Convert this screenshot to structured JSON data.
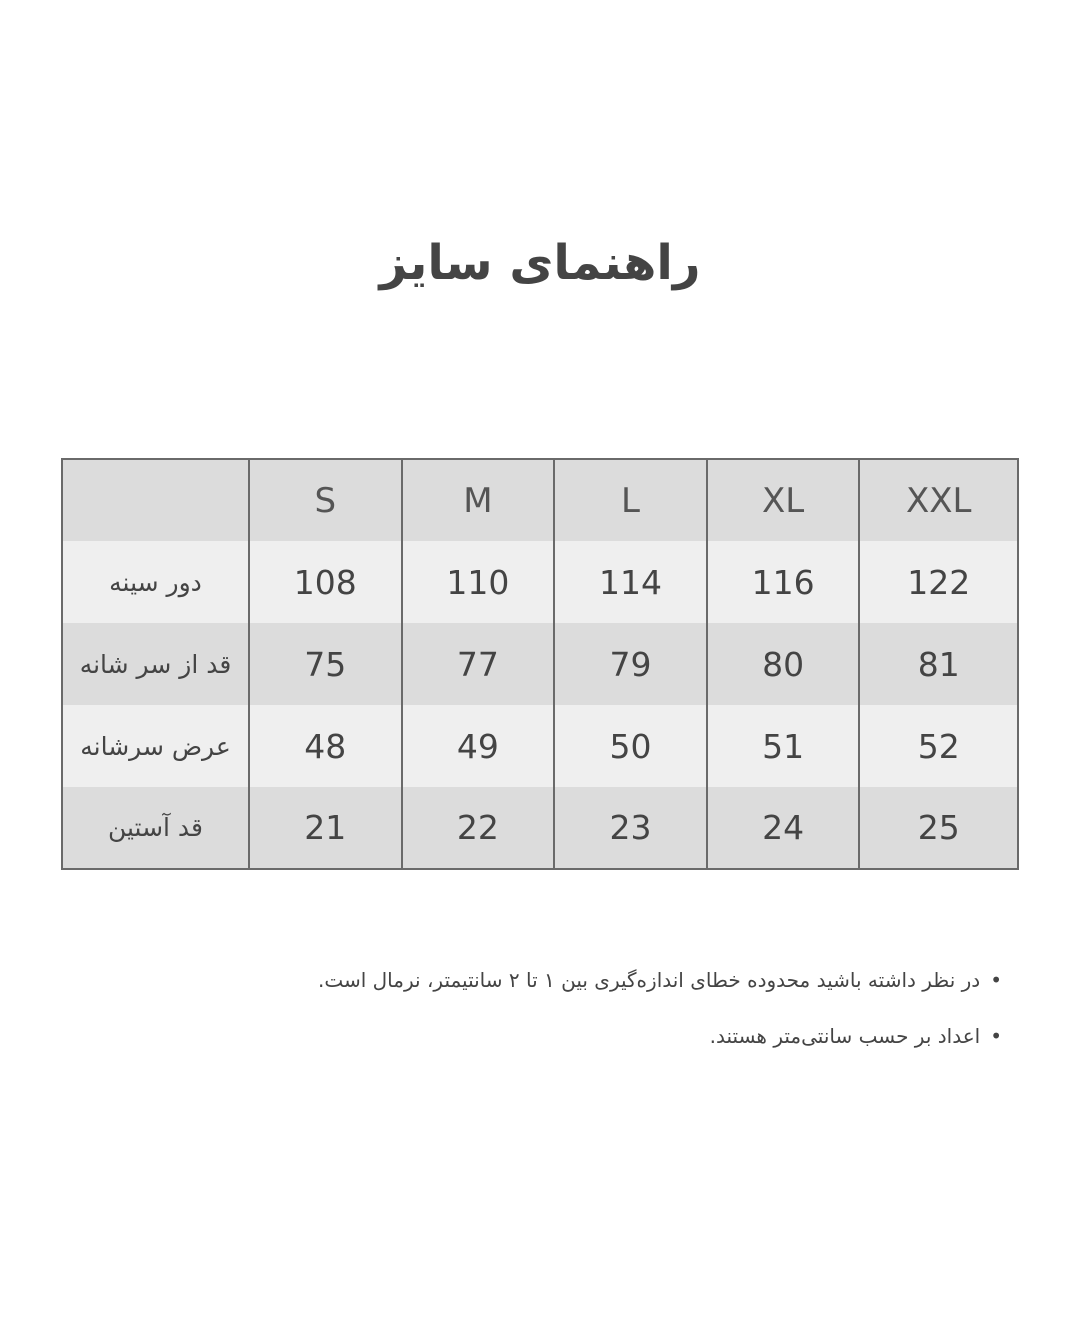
{
  "title": "راهنمای سایز",
  "table": {
    "sizes": [
      "S",
      "M",
      "L",
      "XL",
      "XXL"
    ],
    "rows": [
      {
        "label": "دور سینه",
        "values": [
          "108",
          "110",
          "114",
          "116",
          "122"
        ]
      },
      {
        "label": "قد از سر شانه",
        "values": [
          "75",
          "77",
          "79",
          "80",
          "81"
        ]
      },
      {
        "label": "عرض سرشانه",
        "values": [
          "48",
          "49",
          "50",
          "51",
          "52"
        ]
      },
      {
        "label": "قد آستین",
        "values": [
          "21",
          "22",
          "23",
          "24",
          "25"
        ]
      }
    ]
  },
  "notes": [
    "در نظر داشته باشید محدوده خطای اندازه‌گیری بین ۱ تا ۲ سانتیمتر، نرمال است.",
    "اعداد بر حسب سانتی‌متر هستند."
  ],
  "colors": {
    "header": "#dcdcdc",
    "row_light": "#efefef",
    "row_dark": "#dcdcdc",
    "border": "#6a6a6a",
    "text": "#444444"
  }
}
